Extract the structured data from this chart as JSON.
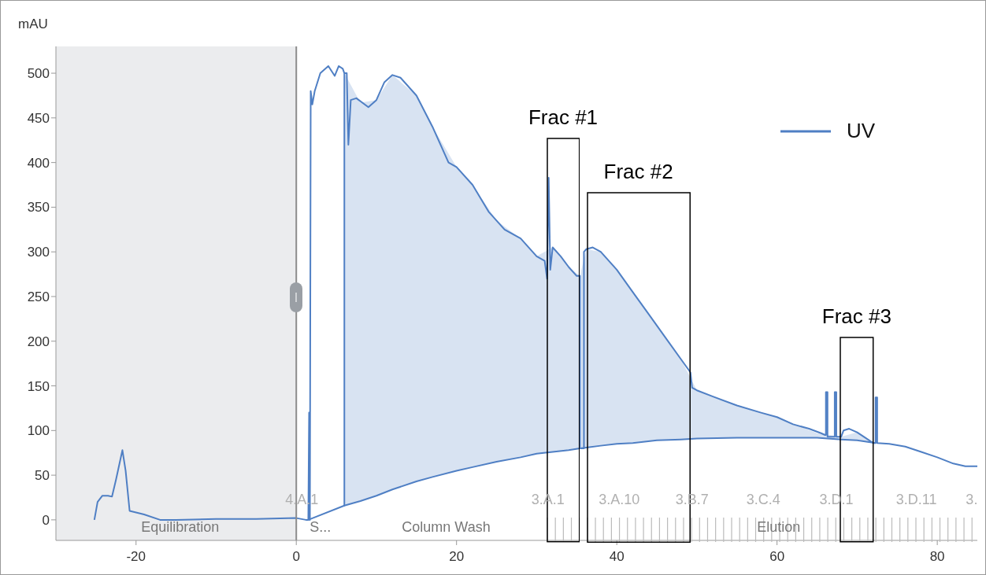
{
  "chart_data": {
    "type": "line",
    "ylabel": "mAU",
    "xlim": [
      -30,
      85
    ],
    "ylim": [
      -23,
      530
    ],
    "xticks": [
      -20,
      0,
      20,
      40,
      60,
      80
    ],
    "yticks": [
      0,
      50,
      100,
      150,
      200,
      250,
      300,
      350,
      400,
      450,
      500
    ],
    "grid": false,
    "legend": "top right",
    "marker": "none",
    "line_style": "solid",
    "series": [
      {
        "name": "UV",
        "color": "#4f7fc4",
        "x": [
          -25.2,
          -24.8,
          -24.2,
          -23.5,
          -23,
          -22.5,
          -21.7,
          -21.3,
          -20.8,
          -19,
          -17,
          -15,
          -10,
          -5,
          0,
          1.2,
          1.5,
          1.6,
          1.7,
          1.8,
          2,
          2.3,
          3,
          4,
          4.8,
          5.3,
          5.8,
          6,
          6,
          6,
          6.3,
          6.5,
          6.8,
          7.5,
          9,
          10,
          11,
          12,
          13,
          15,
          17,
          19,
          20,
          22,
          24,
          26,
          28,
          30,
          31,
          31.3,
          31.5,
          31.7,
          32,
          33,
          34,
          35,
          35.4,
          35.4,
          35.9,
          35.9,
          36.2,
          37,
          38,
          40,
          42,
          44,
          46,
          48,
          49.2,
          49.4,
          50,
          52,
          55,
          58,
          60,
          62,
          64,
          65.5,
          66,
          66.1,
          66.1,
          66.3,
          66.3,
          67.2,
          67.2,
          67.4,
          67.4,
          68,
          68.3,
          69,
          70,
          71,
          72,
          72.3,
          72.3,
          72.5,
          72.5,
          74,
          76,
          78,
          80,
          82,
          83.5,
          85
        ],
        "values": [
          0,
          20,
          27,
          27,
          26,
          45,
          78,
          55,
          10,
          6,
          0,
          0,
          1,
          1,
          2,
          0,
          0,
          120,
          0,
          480,
          465,
          480,
          500,
          508,
          497,
          508,
          505,
          500,
          16,
          500,
          500,
          420,
          470,
          472,
          462,
          470,
          490,
          498,
          495,
          475,
          440,
          400,
          395,
          375,
          345,
          325,
          315,
          295,
          290,
          270,
          383,
          280,
          305,
          295,
          283,
          273,
          273,
          80,
          80,
          300,
          303,
          305,
          300,
          280,
          255,
          230,
          205,
          180,
          165,
          148,
          145,
          138,
          128,
          120,
          115,
          107,
          102,
          97,
          95,
          95,
          143,
          143,
          93,
          93,
          143,
          143,
          93,
          93,
          100,
          102,
          98,
          92,
          86,
          86,
          137,
          137,
          86,
          85,
          82,
          76,
          70,
          63,
          60,
          60
        ]
      },
      {
        "color": "#4f7fc4",
        "x": [
          1.5,
          6,
          8,
          10,
          12,
          15,
          17,
          20,
          22,
          25,
          28,
          30,
          32,
          34,
          35.4,
          36.2,
          38,
          40,
          42,
          45,
          48,
          50,
          55,
          60,
          65,
          68,
          70,
          72.3
        ],
        "values": [
          0,
          16,
          21,
          27,
          34,
          43,
          48,
          55,
          59,
          65,
          70,
          74,
          76,
          78,
          80,
          81,
          83,
          85,
          86,
          89,
          90,
          91,
          92,
          92,
          92,
          90,
          89,
          86
        ],
        "lower": [
          null,
          16,
          21,
          27,
          34,
          43,
          48,
          55,
          59,
          65,
          70,
          74,
          76,
          78,
          80,
          81,
          83,
          85,
          86,
          89,
          90,
          91,
          92,
          92,
          92,
          90,
          89,
          86
        ],
        "upper": [
          null,
          500,
          467,
          470,
          498,
          475,
          440,
          395,
          375,
          335,
          315,
          295,
          305,
          283,
          273,
          303,
          300,
          280,
          255,
          218,
          180,
          145,
          128,
          115,
          97,
          93,
          98,
          86
        ]
      }
    ],
    "bands": [
      {
        "axis": "x",
        "from": -30,
        "to": 0,
        "color": "#ebecee"
      }
    ],
    "ref_lines": [
      {
        "axis": "x",
        "value": 0,
        "color": "#8c8c8c"
      }
    ],
    "annotations": [
      "Frac #1",
      "Frac #2",
      "Frac #3",
      "4.A.1",
      "3.A.1",
      "3.A.10",
      "3.B.7",
      "3.C.4",
      "3.D.1",
      "3.D.11",
      "3.",
      "Equilibration",
      "S...",
      "Column Wash",
      "Elution"
    ]
  }
}
